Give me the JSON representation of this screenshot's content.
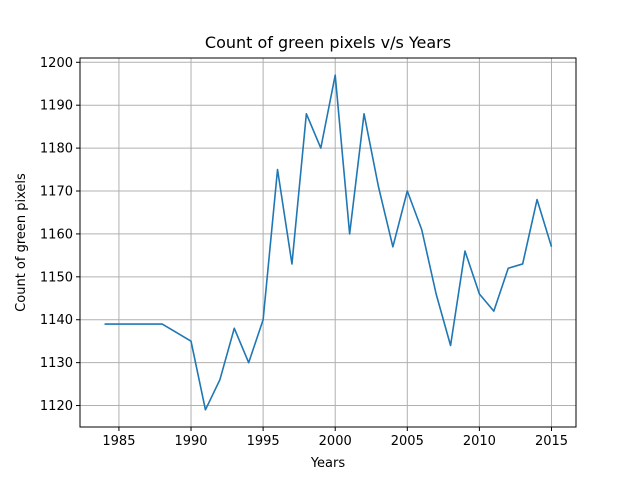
{
  "chart_data": {
    "type": "line",
    "title": "Count of green pixels v/s Years",
    "xlabel": "Years",
    "ylabel": "Count of green pixels",
    "xlim": [
      1982.3,
      2016.7
    ],
    "ylim": [
      1115,
      1201
    ],
    "xticks": [
      "1985",
      "1990",
      "1995",
      "2000",
      "2005",
      "2010",
      "2015"
    ],
    "yticks": [
      "1120",
      "1130",
      "1140",
      "1150",
      "1160",
      "1170",
      "1180",
      "1190",
      "1200"
    ],
    "grid": true,
    "line_color": "#1f77b4",
    "grid_color": "#b0b0b0",
    "series": [
      {
        "x": [
          1984,
          1985,
          1986,
          1987,
          1988,
          1989,
          1990,
          1991,
          1992,
          1993,
          1994,
          1995,
          1996,
          1997,
          1998,
          1999,
          2000,
          2001,
          2002,
          2003,
          2004,
          2005,
          2006,
          2007,
          2008,
          2009,
          2010,
          2011,
          2012,
          2013,
          2014,
          2015
        ],
        "y": [
          1139,
          1139,
          1139,
          1139,
          1139,
          1137,
          1135,
          1119,
          1126,
          1138,
          1130,
          1140,
          1175,
          1153,
          1188,
          1180,
          1197,
          1160,
          1188,
          1171,
          1157,
          1170,
          1161,
          1146,
          1134,
          1156,
          1146,
          1142,
          1152,
          1153,
          1168,
          1157
        ]
      }
    ]
  }
}
